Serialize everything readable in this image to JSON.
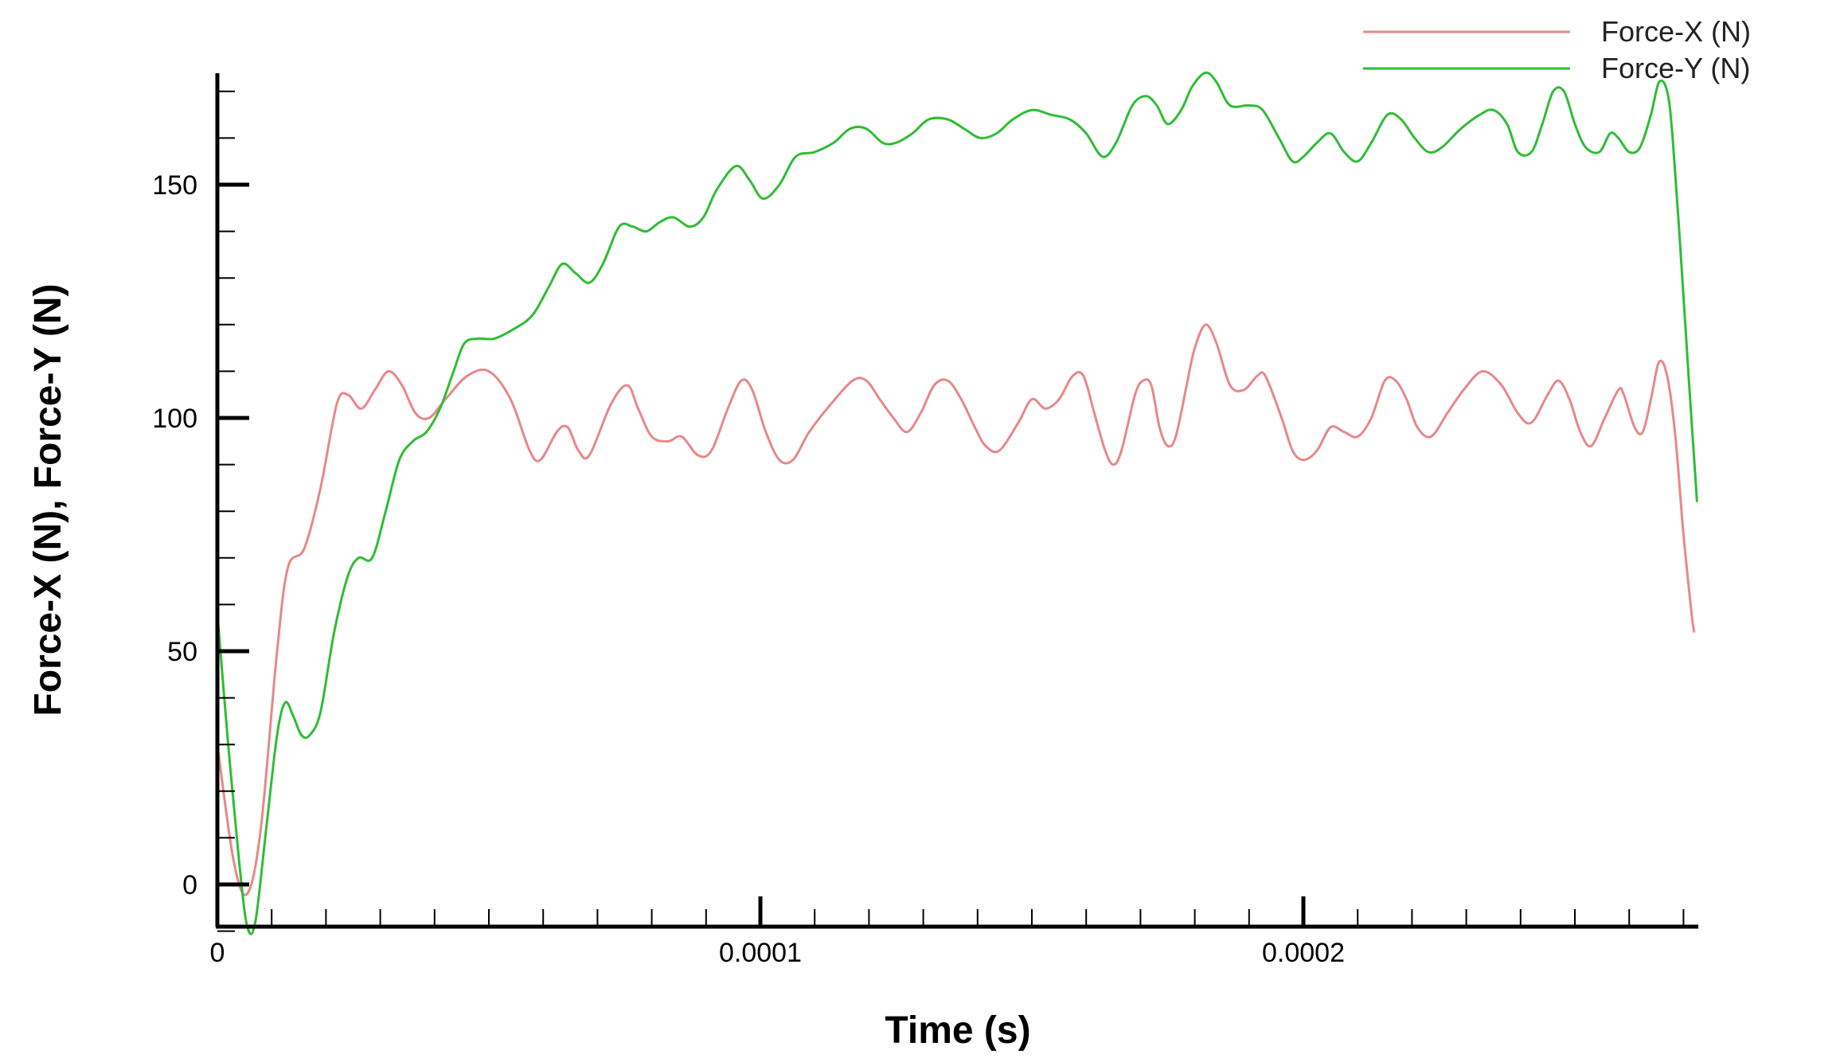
{
  "chart_data": {
    "type": "line",
    "title": "",
    "xlabel": "Time (s)",
    "ylabel": "Force-X (N), Force-Y (N)",
    "xlim": [
      0,
      0.000273
    ],
    "ylim": [
      -10,
      173
    ],
    "grid": false,
    "legend_position": "top-right",
    "x_ticks": [
      {
        "value": 0,
        "label": "0"
      },
      {
        "value": 0.0001,
        "label": "0.0001"
      },
      {
        "value": 0.0002,
        "label": "0.0002"
      }
    ],
    "y_ticks": [
      {
        "value": 0,
        "label": "0"
      },
      {
        "value": 50,
        "label": "50"
      },
      {
        "value": 100,
        "label": "100"
      },
      {
        "value": 150,
        "label": "150"
      }
    ],
    "series": [
      {
        "name": "Force-X (N)",
        "color": "#e8878a",
        "points": [
          [
            0,
            30
          ],
          [
            3e-06,
            5
          ],
          [
            5.5e-06,
            -2
          ],
          [
            8e-06,
            12
          ],
          [
            1.1e-05,
            50
          ],
          [
            1.3e-05,
            68
          ],
          [
            1.6e-05,
            72
          ],
          [
            1.9e-05,
            85
          ],
          [
            2.2e-05,
            103
          ],
          [
            2.4e-05,
            105
          ],
          [
            2.65e-05,
            102
          ],
          [
            2.9e-05,
            106
          ],
          [
            3.15e-05,
            110
          ],
          [
            3.4e-05,
            107
          ],
          [
            3.65e-05,
            101
          ],
          [
            3.9e-05,
            100
          ],
          [
            4.2e-05,
            104
          ],
          [
            4.6e-05,
            109
          ],
          [
            5e-05,
            110
          ],
          [
            5.4e-05,
            104
          ],
          [
            5.75e-05,
            93
          ],
          [
            5.95e-05,
            91
          ],
          [
            6.25e-05,
            97
          ],
          [
            6.45e-05,
            98
          ],
          [
            6.65e-05,
            93
          ],
          [
            6.85e-05,
            92
          ],
          [
            7.25e-05,
            103
          ],
          [
            7.55e-05,
            107
          ],
          [
            7.75e-05,
            102
          ],
          [
            8e-05,
            96
          ],
          [
            8.3e-05,
            95
          ],
          [
            8.55e-05,
            96
          ],
          [
            8.85e-05,
            92
          ],
          [
            9.1e-05,
            93
          ],
          [
            9.4e-05,
            102
          ],
          [
            9.65e-05,
            108
          ],
          [
            9.85e-05,
            106
          ],
          [
            0.000101,
            97
          ],
          [
            0.0001035,
            91
          ],
          [
            0.000106,
            91
          ],
          [
            0.000109,
            97
          ],
          [
            0.000113,
            103
          ],
          [
            0.000117,
            108
          ],
          [
            0.0001195,
            108
          ],
          [
            0.000122,
            104
          ],
          [
            0.0001245,
            100
          ],
          [
            0.000127,
            97
          ],
          [
            0.0001295,
            101
          ],
          [
            0.000132,
            107
          ],
          [
            0.0001345,
            108
          ],
          [
            0.000137,
            104
          ],
          [
            0.0001395,
            98
          ],
          [
            0.0001415,
            94
          ],
          [
            0.000144,
            93
          ],
          [
            0.0001475,
            99
          ],
          [
            0.00015,
            104
          ],
          [
            0.0001525,
            102
          ],
          [
            0.000155,
            104
          ],
          [
            0.0001575,
            109
          ],
          [
            0.0001595,
            109
          ],
          [
            0.0001615,
            101
          ],
          [
            0.0001635,
            93
          ],
          [
            0.000165,
            90
          ],
          [
            0.0001665,
            93
          ],
          [
            0.000169,
            105
          ],
          [
            0.0001705,
            108
          ],
          [
            0.000172,
            107
          ],
          [
            0.0001735,
            98
          ],
          [
            0.000175,
            94
          ],
          [
            0.0001765,
            96
          ],
          [
            0.0001785,
            107
          ],
          [
            0.00018,
            115
          ],
          [
            0.000182,
            120
          ],
          [
            0.000184,
            116
          ],
          [
            0.0001865,
            107
          ],
          [
            0.000189,
            106
          ],
          [
            0.0001915,
            109
          ],
          [
            0.000193,
            109
          ],
          [
            0.000196,
            100
          ],
          [
            0.000198,
            93
          ],
          [
            0.0002,
            91
          ],
          [
            0.0002025,
            93
          ],
          [
            0.000205,
            98
          ],
          [
            0.0002075,
            97
          ],
          [
            0.00021,
            96
          ],
          [
            0.0002125,
            100
          ],
          [
            0.000215,
            108
          ],
          [
            0.000217,
            108
          ],
          [
            0.000219,
            104
          ],
          [
            0.000221,
            98
          ],
          [
            0.0002235,
            96
          ],
          [
            0.0002265,
            101
          ],
          [
            0.0002295,
            106
          ],
          [
            0.000233,
            110
          ],
          [
            0.0002365,
            107
          ],
          [
            0.0002395,
            101
          ],
          [
            0.000242,
            99
          ],
          [
            0.000245,
            105
          ],
          [
            0.000247,
            108
          ],
          [
            0.000249,
            104
          ],
          [
            0.000251,
            97
          ],
          [
            0.000253,
            94
          ],
          [
            0.0002555,
            100
          ],
          [
            0.000258,
            106
          ],
          [
            0.000259,
            105
          ],
          [
            0.000261,
            98
          ],
          [
            0.0002625,
            97
          ],
          [
            0.000264,
            104
          ],
          [
            0.0002655,
            112
          ],
          [
            0.000267,
            109
          ],
          [
            0.0002685,
            96
          ],
          [
            0.00027,
            75
          ],
          [
            0.0002715,
            58
          ],
          [
            0.000272,
            54
          ]
        ]
      },
      {
        "name": "Force-Y (N)",
        "color": "#2ebd35",
        "points": [
          [
            0,
            58
          ],
          [
            2e-06,
            30
          ],
          [
            4e-06,
            5
          ],
          [
            5.5e-06,
            -9
          ],
          [
            7e-06,
            -8
          ],
          [
            9e-06,
            12
          ],
          [
            1.1e-05,
            32
          ],
          [
            1.25e-05,
            39
          ],
          [
            1.4e-05,
            36
          ],
          [
            1.55e-05,
            32
          ],
          [
            1.7e-05,
            32
          ],
          [
            1.9e-05,
            37
          ],
          [
            2.15e-05,
            54
          ],
          [
            2.4e-05,
            66
          ],
          [
            2.6e-05,
            70
          ],
          [
            2.85e-05,
            70
          ],
          [
            3.1e-05,
            80
          ],
          [
            3.35e-05,
            91
          ],
          [
            3.6e-05,
            95
          ],
          [
            3.85e-05,
            97
          ],
          [
            4.1e-05,
            102
          ],
          [
            4.35e-05,
            110
          ],
          [
            4.55e-05,
            116
          ],
          [
            4.8e-05,
            117
          ],
          [
            5.1e-05,
            117
          ],
          [
            5.45e-05,
            119
          ],
          [
            5.8e-05,
            122
          ],
          [
            6.1e-05,
            128
          ],
          [
            6.35e-05,
            133
          ],
          [
            6.6e-05,
            131
          ],
          [
            6.85e-05,
            129
          ],
          [
            7.1e-05,
            133
          ],
          [
            7.4e-05,
            141
          ],
          [
            7.65e-05,
            141
          ],
          [
            7.9e-05,
            140
          ],
          [
            8.15e-05,
            142
          ],
          [
            8.4e-05,
            143
          ],
          [
            8.7e-05,
            141
          ],
          [
            8.95e-05,
            143
          ],
          [
            9.2e-05,
            149
          ],
          [
            9.55e-05,
            154
          ],
          [
            9.8e-05,
            151
          ],
          [
            0.0001005,
            147
          ],
          [
            0.0001035,
            150
          ],
          [
            0.0001065,
            156
          ],
          [
            0.00011,
            157
          ],
          [
            0.0001135,
            159
          ],
          [
            0.0001165,
            162
          ],
          [
            0.0001195,
            162
          ],
          [
            0.0001225,
            159
          ],
          [
            0.000125,
            159
          ],
          [
            0.000128,
            161
          ],
          [
            0.000131,
            164
          ],
          [
            0.0001345,
            164
          ],
          [
            0.0001375,
            162
          ],
          [
            0.0001405,
            160
          ],
          [
            0.0001435,
            161
          ],
          [
            0.0001465,
            164
          ],
          [
            0.00015,
            166
          ],
          [
            0.0001535,
            165
          ],
          [
            0.000157,
            164
          ],
          [
            0.00016,
            161
          ],
          [
            0.000163,
            156
          ],
          [
            0.0001655,
            159
          ],
          [
            0.0001685,
            167
          ],
          [
            0.000171,
            169
          ],
          [
            0.000173,
            167
          ],
          [
            0.000175,
            163
          ],
          [
            0.0001775,
            166
          ],
          [
            0.0001795,
            171
          ],
          [
            0.000182,
            174
          ],
          [
            0.000184,
            172
          ],
          [
            0.0001865,
            167
          ],
          [
            0.00019,
            167
          ],
          [
            0.0001925,
            166
          ],
          [
            0.0001955,
            160
          ],
          [
            0.000198,
            155
          ],
          [
            0.0002,
            156
          ],
          [
            0.0002025,
            159
          ],
          [
            0.000205,
            161
          ],
          [
            0.0002075,
            157
          ],
          [
            0.00021,
            155
          ],
          [
            0.0002125,
            159
          ],
          [
            0.0002155,
            165
          ],
          [
            0.000218,
            164
          ],
          [
            0.0002205,
            160
          ],
          [
            0.000223,
            157
          ],
          [
            0.0002255,
            158
          ],
          [
            0.000229,
            162
          ],
          [
            0.0002325,
            165
          ],
          [
            0.000235,
            166
          ],
          [
            0.0002375,
            163
          ],
          [
            0.0002395,
            157
          ],
          [
            0.000242,
            157
          ],
          [
            0.000244,
            163
          ],
          [
            0.000246,
            170
          ],
          [
            0.000248,
            170
          ],
          [
            0.00025,
            163
          ],
          [
            0.000252,
            158
          ],
          [
            0.0002545,
            157
          ],
          [
            0.0002565,
            161
          ],
          [
            0.000258,
            160
          ],
          [
            0.00026,
            157
          ],
          [
            0.000262,
            158
          ],
          [
            0.000264,
            165
          ],
          [
            0.0002655,
            172
          ],
          [
            0.000267,
            170
          ],
          [
            0.000268,
            160
          ],
          [
            0.0002695,
            135
          ],
          [
            0.000271,
            108
          ],
          [
            0.0002725,
            82
          ]
        ]
      }
    ]
  }
}
